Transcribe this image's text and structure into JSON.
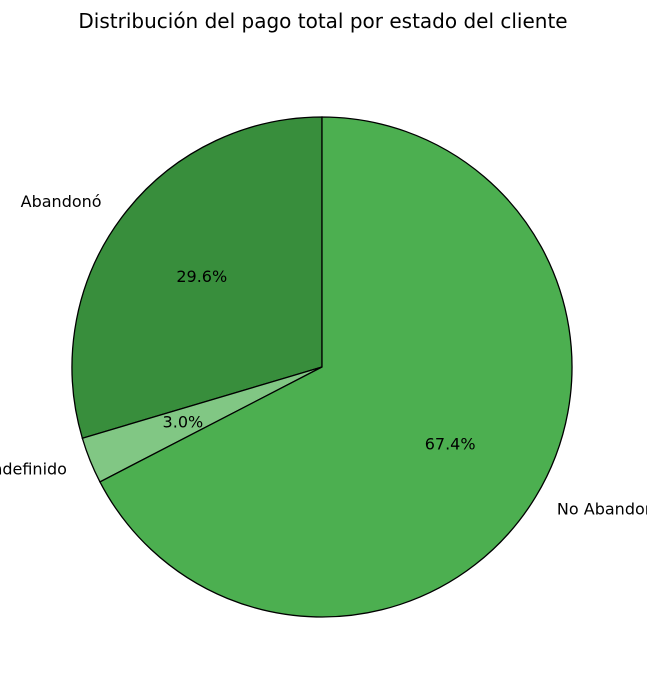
{
  "chart_data": {
    "type": "pie",
    "title": "Distribución del pago total por estado del cliente",
    "slices": [
      {
        "label": "Abandonó",
        "value": 29.6,
        "pct_label": "29.6%",
        "color": "#388e3c"
      },
      {
        "label": "Indefinido",
        "value": 3.0,
        "pct_label": "3.0%",
        "color": "#81c784"
      },
      {
        "label": "No Abandonó",
        "value": 67.4,
        "pct_label": "67.4%",
        "color": "#4caf50"
      }
    ],
    "start_angle_deg": 90,
    "direction": "counterclockwise",
    "legend": "none"
  }
}
